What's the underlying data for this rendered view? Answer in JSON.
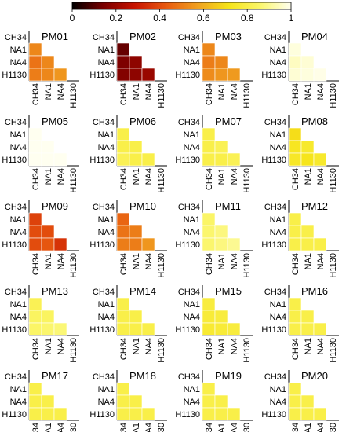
{
  "colorbar": {
    "ticks": [
      0,
      0.2,
      0.4,
      0.6,
      0.8,
      1
    ],
    "tick_labels": [
      "0",
      "0.2",
      "0.4",
      "0.6",
      "0.8",
      "1"
    ],
    "colormap": [
      "#000000",
      "#7a0000",
      "#c81400",
      "#e85a10",
      "#f0a020",
      "#f6e418",
      "#fbf66a",
      "#fffff0"
    ]
  },
  "chart_data": {
    "type": "heatmap",
    "variables": [
      "CH34",
      "NA1",
      "NA4",
      "H1130"
    ],
    "rows": [
      "CH34",
      "NA1",
      "NA4",
      "H1130"
    ],
    "columns": [
      "CH34",
      "NA1",
      "NA4",
      "H1130"
    ],
    "value_range": [
      0,
      1
    ],
    "layout": "lower-triangle",
    "grid_rows": 5,
    "grid_cols": 4,
    "panels": [
      {
        "title": "PM01",
        "values": [
          [
            0.52
          ],
          [
            0.48,
            0.52
          ],
          [
            0.5,
            0.52,
            0.55
          ]
        ]
      },
      {
        "title": "PM02",
        "values": [
          [
            0.12
          ],
          [
            0.15,
            0.18
          ],
          [
            0.16,
            0.18,
            0.2
          ]
        ]
      },
      {
        "title": "PM03",
        "values": [
          [
            0.52
          ],
          [
            0.5,
            0.52
          ],
          [
            0.53,
            0.55,
            0.56
          ]
        ]
      },
      {
        "title": "PM04",
        "values": [
          [
            0.98
          ],
          [
            0.95,
            0.97
          ],
          [
            0.97,
            0.98,
            0.99
          ]
        ]
      },
      {
        "title": "PM05",
        "values": [
          [
            1.0
          ],
          [
            1.0,
            1.0
          ],
          [
            1.0,
            1.0,
            1.0
          ]
        ]
      },
      {
        "title": "PM06",
        "values": [
          [
            0.8
          ],
          [
            0.8,
            0.8
          ],
          [
            0.82,
            0.8,
            0.8
          ]
        ]
      },
      {
        "title": "PM07",
        "values": [
          [
            0.8
          ],
          [
            0.8,
            0.82
          ],
          [
            0.8,
            0.8,
            0.82
          ]
        ]
      },
      {
        "title": "PM08",
        "values": [
          [
            0.7
          ],
          [
            0.73,
            0.75
          ],
          [
            0.74,
            0.72,
            0.75
          ]
        ]
      },
      {
        "title": "PM09",
        "values": [
          [
            0.38
          ],
          [
            0.4,
            0.4
          ],
          [
            0.4,
            0.42,
            0.35
          ]
        ]
      },
      {
        "title": "PM10",
        "values": [
          [
            0.45
          ],
          [
            0.48,
            0.5
          ],
          [
            0.5,
            0.5,
            0.55
          ]
        ]
      },
      {
        "title": "PM11",
        "values": [
          [
            0.85
          ],
          [
            0.86,
            0.88
          ],
          [
            0.86,
            0.88,
            0.9
          ]
        ]
      },
      {
        "title": "PM12",
        "values": [
          [
            0.8
          ],
          [
            0.8,
            0.8
          ],
          [
            0.8,
            0.8,
            0.8
          ]
        ]
      },
      {
        "title": "PM13",
        "values": [
          [
            0.82
          ],
          [
            0.84,
            0.84
          ],
          [
            0.85,
            0.86,
            0.87
          ]
        ]
      },
      {
        "title": "PM14",
        "values": [
          [
            0.8
          ],
          [
            0.8,
            0.8
          ],
          [
            0.8,
            0.8,
            0.8
          ]
        ]
      },
      {
        "title": "PM15",
        "values": [
          [
            0.78
          ],
          [
            0.77,
            0.78
          ],
          [
            0.76,
            0.77,
            0.78
          ]
        ]
      },
      {
        "title": "PM16",
        "values": [
          [
            0.8
          ],
          [
            0.8,
            0.8
          ],
          [
            0.8,
            0.8,
            0.8
          ]
        ]
      },
      {
        "title": "PM17",
        "values": [
          [
            0.8
          ],
          [
            0.8,
            0.8
          ],
          [
            0.8,
            0.8,
            0.8
          ]
        ]
      },
      {
        "title": "PM18",
        "values": [
          [
            0.8
          ],
          [
            0.8,
            0.8
          ],
          [
            0.8,
            0.8,
            0.8
          ]
        ]
      },
      {
        "title": "PM19",
        "values": [
          [
            0.8
          ],
          [
            0.8,
            0.8
          ],
          [
            0.8,
            0.8,
            0.8
          ]
        ]
      },
      {
        "title": "PM20",
        "values": [
          [
            0.8
          ],
          [
            0.8,
            0.8
          ],
          [
            0.8,
            0.8,
            0.8
          ]
        ]
      }
    ]
  }
}
